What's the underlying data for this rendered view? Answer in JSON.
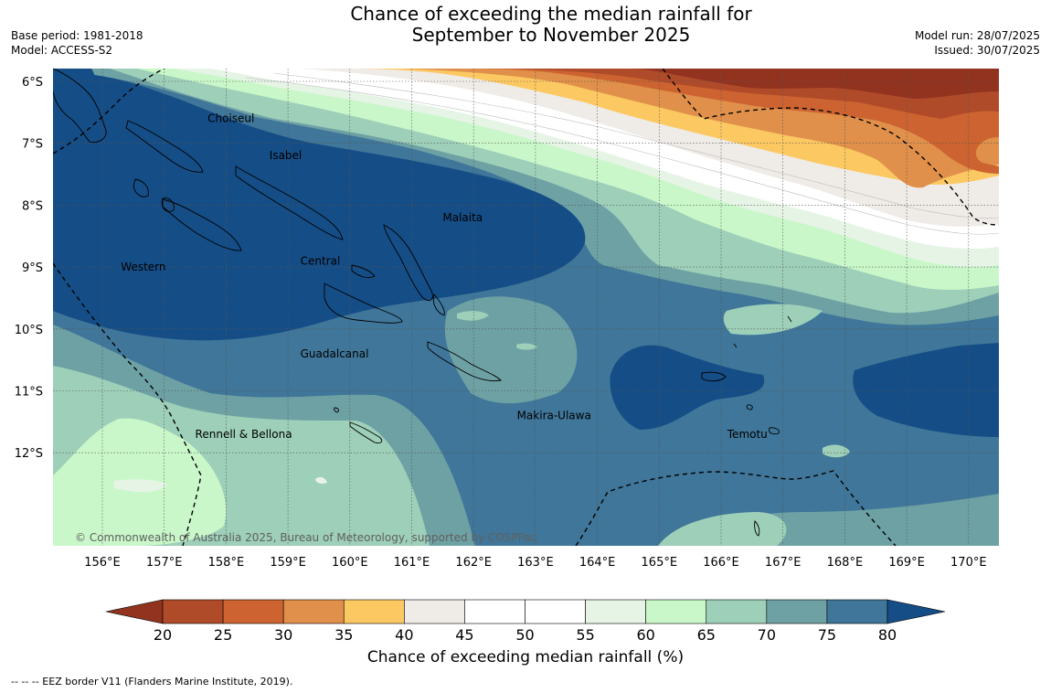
{
  "header": {
    "title_line1": "Chance of exceeding the median rainfall for",
    "title_line2": "September to November 2025",
    "base_period": "Base period: 1981-2018",
    "model": "Model: ACCESS-S2",
    "model_run": "Model run: 28/07/2025",
    "issued": "Issued: 30/07/2025"
  },
  "map": {
    "lon_labels": [
      "156°E",
      "157°E",
      "158°E",
      "159°E",
      "160°E",
      "161°E",
      "162°E",
      "163°E",
      "164°E",
      "165°E",
      "166°E",
      "167°E",
      "168°E",
      "169°E",
      "170°E"
    ],
    "lat_labels": [
      "6°S",
      "7°S",
      "8°S",
      "9°S",
      "10°S",
      "11°S",
      "12°S"
    ],
    "place_labels": [
      {
        "name": "Choiseul",
        "lon": 157.7,
        "lat": -6.6
      },
      {
        "name": "Isabel",
        "lon": 158.7,
        "lat": -7.2
      },
      {
        "name": "Malaita",
        "lon": 161.5,
        "lat": -8.2
      },
      {
        "name": "Western",
        "lon": 156.3,
        "lat": -9.0
      },
      {
        "name": "Central",
        "lon": 159.2,
        "lat": -8.9
      },
      {
        "name": "Guadalcanal",
        "lon": 159.2,
        "lat": -10.4
      },
      {
        "name": "Rennell & Bellona",
        "lon": 157.5,
        "lat": -11.7
      },
      {
        "name": "Makira-Ulawa",
        "lon": 162.7,
        "lat": -11.4
      },
      {
        "name": "Temotu",
        "lon": 166.1,
        "lat": -11.7
      }
    ],
    "copyright": "© Commonwealth of Australia 2025, Bureau of Meteorology, supported by COSPPac",
    "colors": {
      "c80plus": "#154d86",
      "c75_80": "#3f7699",
      "c70_75": "#6ea1a4",
      "c65_70": "#9dcfb9",
      "c60_65": "#c9f7c9",
      "c55_60": "#e6f4e6",
      "c45_55": "#ffffff",
      "c40_45": "#efebe7",
      "c35_40": "#fcc862",
      "c30_35": "#e0904a",
      "c25_30": "#cc6330",
      "c20_25": "#b04b2a",
      "c_lt20": "#923320"
    }
  },
  "colorbar": {
    "ticks": [
      "20",
      "25",
      "30",
      "35",
      "40",
      "45",
      "50",
      "55",
      "60",
      "65",
      "70",
      "75",
      "80"
    ],
    "colors": [
      "#923320",
      "#b04b2a",
      "#cc6330",
      "#e0904a",
      "#fcc862",
      "#efebe7",
      "#ffffff",
      "#ffffff",
      "#e6f4e6",
      "#c9f7c9",
      "#9dcfb9",
      "#6ea1a4",
      "#3f7699",
      "#154d86"
    ],
    "label": "Chance of exceeding median rainfall (%)"
  },
  "footnote": "--  --  -- EEZ border V11 (Flanders Marine Institute, 2019)."
}
